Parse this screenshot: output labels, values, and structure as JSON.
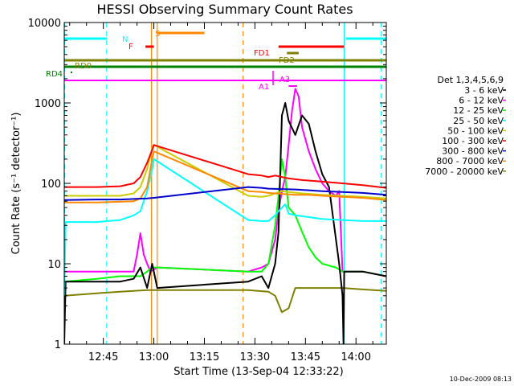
{
  "chart_data": {
    "type": "line",
    "title": "HESSI Observing Summary Count Rates",
    "xlabel": "Start Time (13-Sep-04 12:33:22)",
    "ylabel": "Count Rate (s⁻¹ detector⁻¹)",
    "y_scale": "log",
    "ylim": [
      1,
      10000
    ],
    "xlim_minutes_after_1230": [
      3.4,
      99
    ],
    "x_ticks": [
      {
        "label": "12:45",
        "t": 15
      },
      {
        "label": "13:00",
        "t": 30
      },
      {
        "label": "13:15",
        "t": 45
      },
      {
        "label": "13:30",
        "t": 60
      },
      {
        "label": "13:45",
        "t": 75
      },
      {
        "label": "14:00",
        "t": 90
      }
    ],
    "y_ticks": [
      {
        "label": "1",
        "v": 1
      },
      {
        "label": "10",
        "v": 10
      },
      {
        "label": "100",
        "v": 100
      },
      {
        "label": "1000",
        "v": 1000
      },
      {
        "label": "10000",
        "v": 10000
      }
    ],
    "legend_title": "Det 1,3,4,5,6,9",
    "legend_position": "right",
    "series": [
      {
        "name": "3 - 6 keV",
        "color": "#000000",
        "values": [
          [
            3.4,
            1.0
          ],
          [
            3.8,
            6
          ],
          [
            13,
            6
          ],
          [
            20,
            6
          ],
          [
            24,
            6.5
          ],
          [
            26,
            9
          ],
          [
            28,
            5
          ],
          [
            29.5,
            10
          ],
          [
            31,
            5
          ],
          [
            58,
            6
          ],
          [
            62,
            7
          ],
          [
            64,
            5
          ],
          [
            66,
            10
          ],
          [
            67,
            25
          ],
          [
            68,
            700
          ],
          [
            69,
            1000
          ],
          [
            70,
            600
          ],
          [
            72,
            400
          ],
          [
            74,
            700
          ],
          [
            76,
            550
          ],
          [
            78,
            250
          ],
          [
            80,
            130
          ],
          [
            82,
            90
          ],
          [
            85,
            10
          ],
          [
            86,
            4
          ],
          [
            86.3,
            1
          ],
          [
            86.5,
            8
          ],
          [
            92,
            8
          ],
          [
            99,
            7
          ]
        ]
      },
      {
        "name": "6 - 12 keV",
        "color": "#ff00ff",
        "values": [
          [
            3.4,
            8
          ],
          [
            13,
            8
          ],
          [
            20,
            8
          ],
          [
            24,
            8
          ],
          [
            25,
            13
          ],
          [
            26,
            24
          ],
          [
            27,
            13
          ],
          [
            28,
            10
          ],
          [
            29,
            8
          ],
          [
            31,
            9
          ],
          [
            58,
            8
          ],
          [
            62,
            9
          ],
          [
            64,
            10
          ],
          [
            66,
            20
          ],
          [
            67,
            45
          ],
          [
            68,
            80
          ],
          [
            69,
            120
          ],
          [
            70,
            300
          ],
          [
            71,
            800
          ],
          [
            72,
            1500
          ],
          [
            73,
            1200
          ],
          [
            74,
            500
          ],
          [
            76,
            250
          ],
          [
            78,
            150
          ],
          [
            80,
            100
          ],
          [
            82,
            80
          ],
          [
            84,
            70
          ],
          [
            85,
            80
          ],
          [
            86,
            8
          ],
          [
            92,
            8
          ],
          [
            99,
            7
          ]
        ]
      },
      {
        "name": "12 - 25 keV",
        "color": "#00ff00",
        "values": [
          [
            3.4,
            6
          ],
          [
            13,
            6.5
          ],
          [
            20,
            7
          ],
          [
            26,
            7
          ],
          [
            28,
            8
          ],
          [
            29.5,
            9
          ],
          [
            31,
            9
          ],
          [
            58,
            8
          ],
          [
            62,
            8
          ],
          [
            64,
            10
          ],
          [
            66,
            30
          ],
          [
            67,
            70
          ],
          [
            68,
            200
          ],
          [
            69,
            120
          ],
          [
            70,
            50
          ],
          [
            72,
            40
          ],
          [
            74,
            25
          ],
          [
            76,
            16
          ],
          [
            78,
            12
          ],
          [
            80,
            10
          ],
          [
            84,
            9
          ],
          [
            86,
            8
          ],
          [
            92,
            8
          ],
          [
            99,
            7
          ]
        ]
      },
      {
        "name": "25 - 50 keV",
        "color": "#00ffff",
        "values": [
          [
            3.4,
            4
          ],
          [
            3.8,
            33
          ],
          [
            13,
            33
          ],
          [
            20,
            35
          ],
          [
            24,
            40
          ],
          [
            26,
            45
          ],
          [
            28,
            80
          ],
          [
            29.5,
            150
          ],
          [
            30,
            200
          ],
          [
            58,
            35
          ],
          [
            62,
            34
          ],
          [
            64,
            34
          ],
          [
            66,
            40
          ],
          [
            67,
            45
          ],
          [
            68,
            50
          ],
          [
            69,
            55
          ],
          [
            70,
            42
          ],
          [
            72,
            40
          ],
          [
            76,
            38
          ],
          [
            80,
            36
          ],
          [
            86,
            35
          ],
          [
            92,
            34
          ],
          [
            99,
            34
          ]
        ]
      },
      {
        "name": "50 - 100 keV",
        "color": "#cccc00",
        "values": [
          [
            3.4,
            70
          ],
          [
            13,
            70
          ],
          [
            20,
            70
          ],
          [
            24,
            75
          ],
          [
            26,
            90
          ],
          [
            28,
            150
          ],
          [
            29.5,
            280
          ],
          [
            30,
            300
          ],
          [
            58,
            70
          ],
          [
            62,
            68
          ],
          [
            64,
            70
          ],
          [
            66,
            75
          ],
          [
            68,
            80
          ],
          [
            70,
            78
          ],
          [
            74,
            75
          ],
          [
            80,
            72
          ],
          [
            86,
            70
          ],
          [
            92,
            68
          ],
          [
            99,
            65
          ]
        ]
      },
      {
        "name": "100 - 300 keV",
        "color": "#ff0000",
        "values": [
          [
            3.4,
            90
          ],
          [
            13,
            90
          ],
          [
            20,
            92
          ],
          [
            24,
            100
          ],
          [
            26,
            120
          ],
          [
            28,
            180
          ],
          [
            29.5,
            260
          ],
          [
            30,
            300
          ],
          [
            58,
            130
          ],
          [
            62,
            125
          ],
          [
            64,
            120
          ],
          [
            66,
            125
          ],
          [
            68,
            120
          ],
          [
            70,
            115
          ],
          [
            74,
            110
          ],
          [
            80,
            105
          ],
          [
            86,
            100
          ],
          [
            92,
            95
          ],
          [
            99,
            88
          ]
        ]
      },
      {
        "name": "300 - 800 keV",
        "color": "#0000cc",
        "values": [
          [
            3.4,
            62
          ],
          [
            13,
            63
          ],
          [
            20,
            63
          ],
          [
            24,
            64
          ],
          [
            28,
            65
          ],
          [
            30,
            66
          ],
          [
            58,
            90
          ],
          [
            62,
            88
          ],
          [
            64,
            86
          ],
          [
            68,
            85
          ],
          [
            72,
            84
          ],
          [
            76,
            82
          ],
          [
            80,
            80
          ],
          [
            86,
            78
          ],
          [
            92,
            76
          ],
          [
            99,
            72
          ]
        ]
      },
      {
        "name": "800 - 7000 keV",
        "color": "#ff8800",
        "values": [
          [
            3.4,
            58
          ],
          [
            13,
            58
          ],
          [
            20,
            59
          ],
          [
            24,
            60
          ],
          [
            26,
            65
          ],
          [
            28,
            90
          ],
          [
            29.5,
            200
          ],
          [
            30,
            250
          ],
          [
            58,
            80
          ],
          [
            62,
            78
          ],
          [
            64,
            76
          ],
          [
            68,
            74
          ],
          [
            72,
            72
          ],
          [
            76,
            72
          ],
          [
            80,
            70
          ],
          [
            86,
            68
          ],
          [
            92,
            66
          ],
          [
            99,
            62
          ]
        ]
      },
      {
        "name": "7000 - 20000 keV",
        "color": "#808000",
        "values": [
          [
            3.4,
            4
          ],
          [
            13,
            4.3
          ],
          [
            20,
            4.5
          ],
          [
            24,
            4.6
          ],
          [
            28,
            4.7
          ],
          [
            31,
            4.7
          ],
          [
            58,
            4.7
          ],
          [
            64,
            4.5
          ],
          [
            66,
            4
          ],
          [
            68,
            2.5
          ],
          [
            70,
            2.8
          ],
          [
            72,
            5
          ],
          [
            74,
            5
          ],
          [
            80,
            5
          ],
          [
            86,
            5
          ],
          [
            92,
            4.8
          ],
          [
            99,
            4.6
          ]
        ]
      }
    ],
    "flag_bars": [
      {
        "label": "N",
        "color": "#00ffff",
        "segments": [
          [
            3.4,
            16
          ],
          [
            87,
            99
          ]
        ]
      },
      {
        "label": "S",
        "color": "#ff8800",
        "segments": [
          [
            31,
            45
          ]
        ]
      },
      {
        "label": "F",
        "color": "#ff0000",
        "segments": [
          [
            27.5,
            30
          ]
        ]
      },
      {
        "label": "FD1",
        "color": "#ff0000",
        "segments": [
          [
            67,
            86.5
          ]
        ]
      },
      {
        "label": "FD2",
        "color": "#808000",
        "segments": [
          [
            69.5,
            73
          ]
        ]
      },
      {
        "label": "RD4",
        "color": "#008000",
        "segments": [
          [
            3.4,
            99
          ]
        ]
      },
      {
        "label": "RD0",
        "color": "#808000",
        "segments": [
          [
            3.4,
            99
          ]
        ]
      },
      {
        "label": "A1",
        "color": "#ff00ff",
        "segments": [
          [
            3.4,
            99
          ]
        ]
      },
      {
        "label": "A3",
        "color": "#ff00ff",
        "segments": [
          [
            70,
            72.5
          ]
        ]
      }
    ],
    "vertical_markers": [
      {
        "t": 3.5,
        "color": "#00ffff",
        "style": "dashed"
      },
      {
        "t": 16,
        "color": "#00ffff",
        "style": "dashed"
      },
      {
        "t": 29.3,
        "color": "#ff8800",
        "style": "solid"
      },
      {
        "t": 31,
        "color": "#ff8800",
        "style": "solid"
      },
      {
        "t": 56.5,
        "color": "#ff8800",
        "style": "dashed"
      },
      {
        "t": 86.5,
        "color": "#00ffff",
        "style": "solid"
      },
      {
        "t": 97.5,
        "color": "#00ffff",
        "style": "dashed"
      }
    ]
  },
  "footer_date": "10-Dec-2009 08:13"
}
